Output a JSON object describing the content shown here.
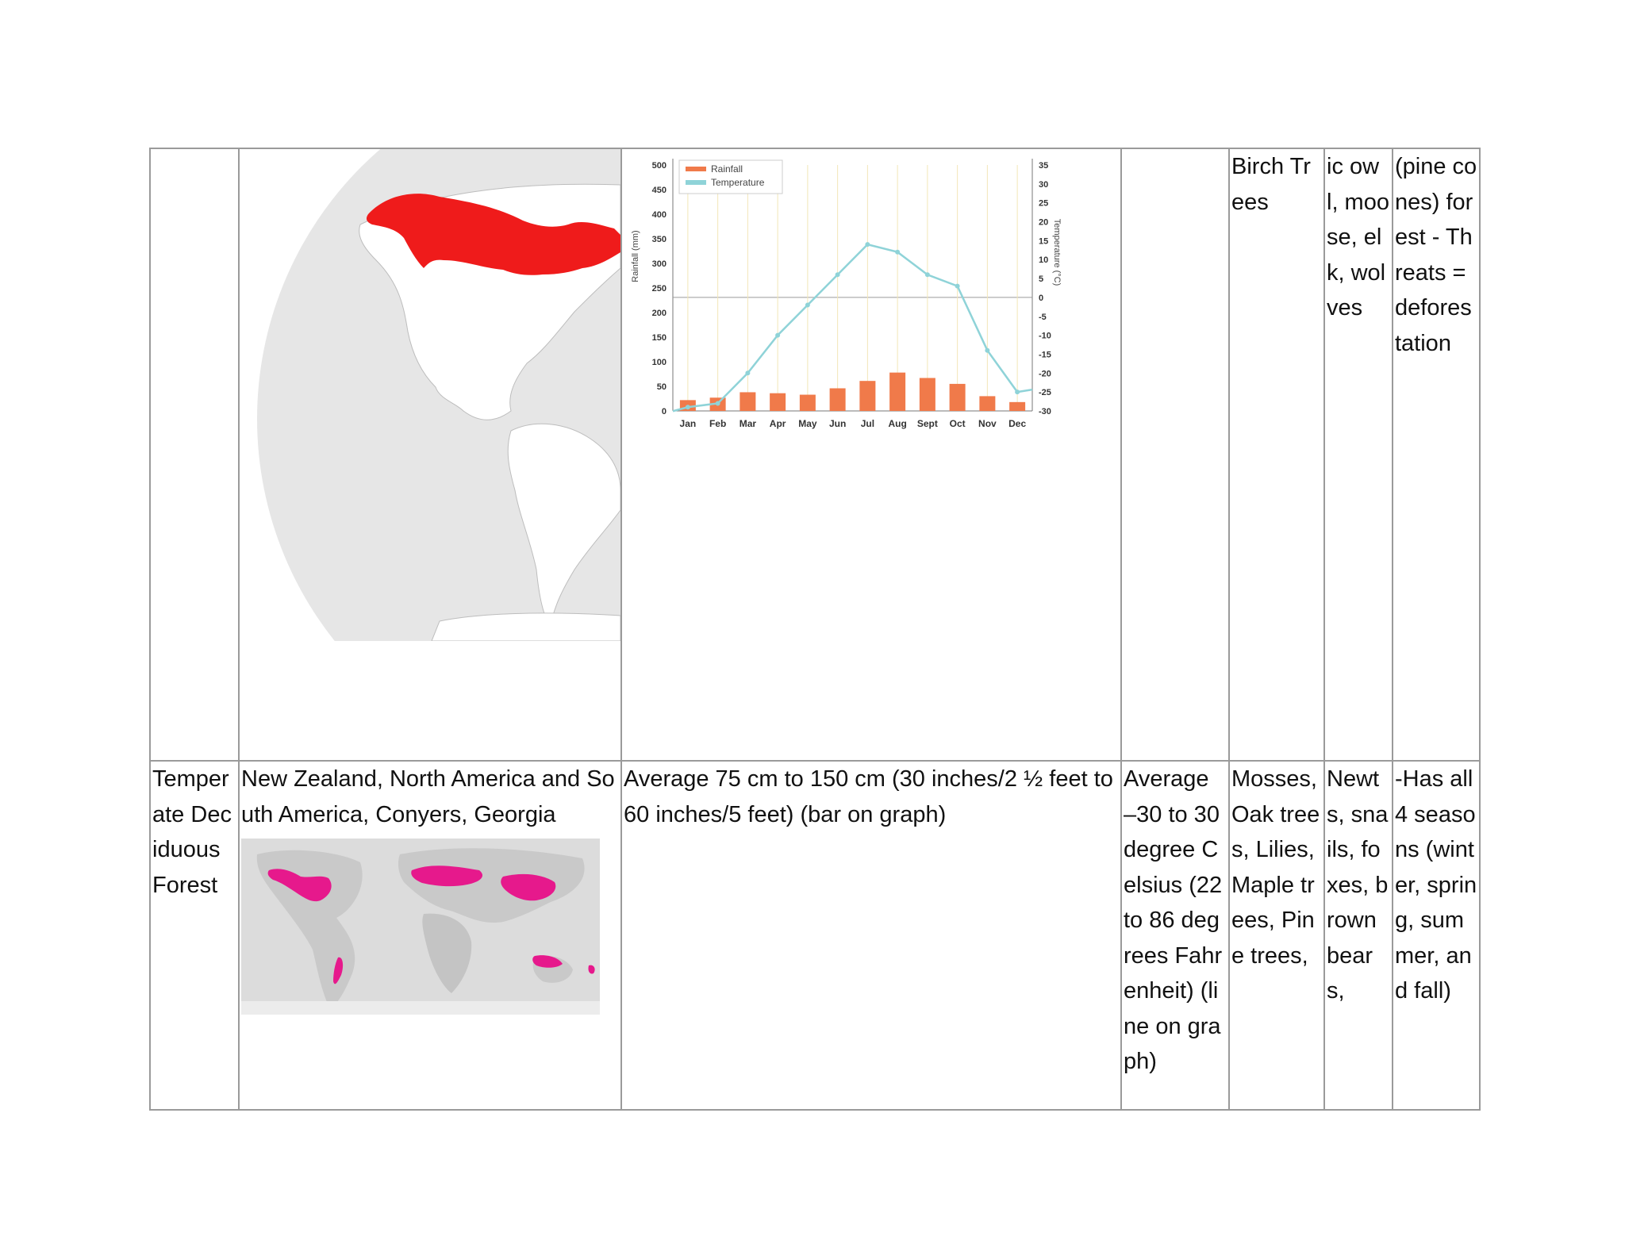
{
  "colors": {
    "border": "#9a9a9a",
    "rainfall_bar": "#f07a4a",
    "temperature_line": "#8fd3d8",
    "taiga_region": "#ef1b1b",
    "deciduous_region": "#e6198c",
    "map_land": "#e6e6e6"
  },
  "row1": {
    "plants": "Birch Trees",
    "animals": "ic owl, moose, elk, wolves",
    "notes": "(pine cones) forest - Threats = deforestation"
  },
  "row2": {
    "biome": "Temperate Deciduous Forest",
    "location": "New Zealand, North America and South America, Conyers, Georgia",
    "rainfall": "Average 75 cm to 150 cm (30 inches/2 ½ feet to 60 inches/5 feet) (bar on graph)",
    "temperature": "Average –30 to 30 degree Celsius (22 to 86 degrees Fahrenheit) (line on graph)",
    "plants": "Mosses, Oak trees, Lilies, Maple trees, Pine trees,",
    "animals": "Newts, snails, foxes, brown bears,",
    "notes": "-Has all 4 seasons (winter, spring, summer, and fall)"
  },
  "icons": {
    "taiga_map": "globe-map-icon",
    "deciduous_map": "world-map-icon"
  },
  "chart_data": {
    "type": "bar",
    "categories": [
      "Jan",
      "Feb",
      "Mar",
      "Apr",
      "May",
      "Jun",
      "Jul",
      "Aug",
      "Sept",
      "Oct",
      "Nov",
      "Dec"
    ],
    "series": [
      {
        "name": "Rainfall",
        "type": "bar",
        "axis": "left",
        "values": [
          22,
          27,
          38,
          36,
          33,
          46,
          61,
          78,
          67,
          55,
          30,
          18
        ]
      },
      {
        "name": "Temperature",
        "type": "line",
        "axis": "right",
        "values": [
          -29,
          -28,
          -20,
          -10,
          -2,
          6,
          14,
          12,
          6,
          3,
          -14,
          -25
        ]
      }
    ],
    "title": "",
    "xlabel": "",
    "ylabel": "Rainfall (mm)",
    "y2label": "Temperature (°C)",
    "ylim": [
      0,
      500
    ],
    "y2lim": [
      -30,
      35
    ],
    "yticks": [
      "0",
      "50",
      "100",
      "150",
      "200",
      "250",
      "300",
      "350",
      "400",
      "450",
      "500"
    ],
    "y2ticks": [
      "-30",
      "-25",
      "-20",
      "-15",
      "-10",
      "-5",
      "0",
      "5",
      "10",
      "15",
      "20",
      "25",
      "30",
      "35"
    ],
    "grid": "vertical",
    "legend": "top-left"
  }
}
